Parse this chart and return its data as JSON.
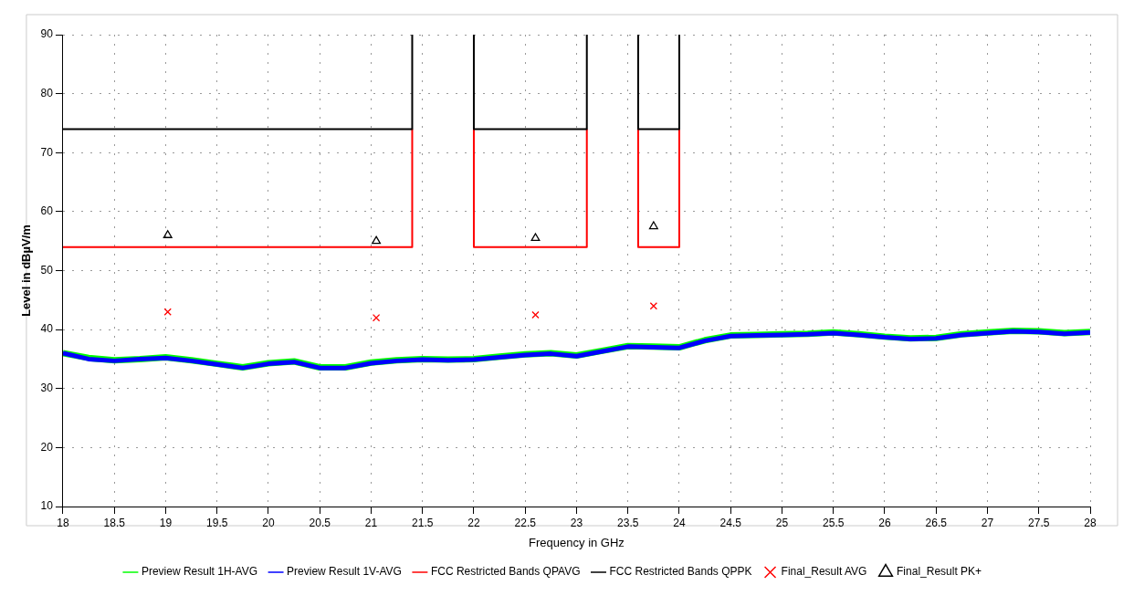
{
  "chart_data": {
    "type": "line",
    "xlabel": "Frequency in GHz",
    "ylabel": "Level in dBµV/m",
    "xlim": [
      18,
      28
    ],
    "xticks": [
      18,
      18.5,
      19,
      19.5,
      20,
      20.5,
      21,
      21.5,
      22,
      22.5,
      23,
      23.5,
      24,
      24.5,
      25,
      25.5,
      26,
      26.5,
      27,
      27.5,
      28
    ],
    "ylim": [
      10,
      90
    ],
    "yticks": [
      10,
      20,
      30,
      40,
      50,
      60,
      70,
      80,
      90
    ],
    "grid": true,
    "legend": "bottom",
    "line_style": "solid",
    "series": [
      {
        "name": "Preview Result 1H-AVG",
        "color": "#00ff00",
        "x": [
          18,
          18.25,
          18.5,
          18.75,
          19,
          19.25,
          19.5,
          19.75,
          20,
          20.25,
          20.5,
          20.75,
          21,
          21.25,
          21.5,
          21.75,
          22,
          22.25,
          22.5,
          22.75,
          23,
          23.25,
          23.5,
          23.75,
          24,
          24.25,
          24.5,
          24.75,
          25,
          25.25,
          25.5,
          25.75,
          26,
          26.25,
          26.5,
          26.75,
          27,
          27.25,
          27.5,
          27.75,
          28
        ],
        "values": [
          36,
          35.2,
          34.8,
          35,
          35.3,
          34.8,
          34.2,
          33.6,
          34.3,
          34.6,
          33.6,
          33.6,
          34.4,
          34.8,
          35,
          34.9,
          35,
          35.4,
          35.8,
          36,
          35.6,
          36.4,
          37.2,
          37.1,
          37,
          38.2,
          39,
          39.1,
          39.2,
          39.3,
          39.5,
          39.2,
          38.8,
          38.5,
          38.6,
          39.2,
          39.5,
          39.8,
          39.7,
          39.4,
          39.6
        ]
      },
      {
        "name": "Preview Result 1V-AVG",
        "color": "#0000ff",
        "x": [
          18,
          18.25,
          18.5,
          18.75,
          19,
          19.25,
          19.5,
          19.75,
          20,
          20.25,
          20.5,
          20.75,
          21,
          21.25,
          21.5,
          21.75,
          22,
          22.25,
          22.5,
          22.75,
          23,
          23.25,
          23.5,
          23.75,
          24,
          24.25,
          24.5,
          24.75,
          25,
          25.25,
          25.5,
          25.75,
          26,
          26.25,
          26.5,
          26.75,
          27,
          27.25,
          27.5,
          27.75,
          28
        ],
        "values": [
          36,
          35,
          34.7,
          35,
          35.2,
          34.7,
          34.1,
          33.5,
          34.2,
          34.5,
          33.5,
          33.5,
          34.3,
          34.7,
          34.9,
          34.8,
          34.9,
          35.3,
          35.7,
          35.9,
          35.5,
          36.3,
          37.1,
          37,
          36.9,
          38.1,
          38.9,
          39,
          39.1,
          39.2,
          39.4,
          39.1,
          38.7,
          38.4,
          38.5,
          39.1,
          39.4,
          39.7,
          39.6,
          39.3,
          39.5
        ]
      },
      {
        "name": "FCC Restricted Bands QPAVG",
        "color": "#ff0000",
        "x": [
          18,
          21.4,
          21.4,
          21.7,
          22,
          22,
          23.1,
          23.1,
          23.35,
          23.6,
          23.6,
          24,
          24
        ],
        "values": [
          54,
          54,
          74,
          null,
          74,
          54,
          54,
          74,
          null,
          74,
          54,
          54,
          74
        ]
      },
      {
        "name": "FCC Restricted Bands QPPK",
        "color": "#000000",
        "x": [
          18,
          21.4,
          21.4,
          21.7,
          22,
          22,
          23.1,
          23.1,
          23.35,
          23.6,
          23.6,
          24,
          24
        ],
        "values": [
          74,
          74,
          90,
          null,
          90,
          74,
          74,
          90,
          null,
          90,
          74,
          74,
          90
        ]
      },
      {
        "name": "Final_Result AVG",
        "color": "#ff0000",
        "type": "scatter",
        "marker": "cross",
        "x": [
          19.02,
          21.05,
          22.6,
          23.75
        ],
        "values": [
          43,
          42,
          42.5,
          44
        ]
      },
      {
        "name": "Final_Result PK+",
        "color": "#000000",
        "type": "scatter",
        "marker": "triangle",
        "x": [
          19.02,
          21.05,
          22.6,
          23.75
        ],
        "values": [
          56,
          55,
          55.5,
          57.5
        ]
      }
    ]
  }
}
